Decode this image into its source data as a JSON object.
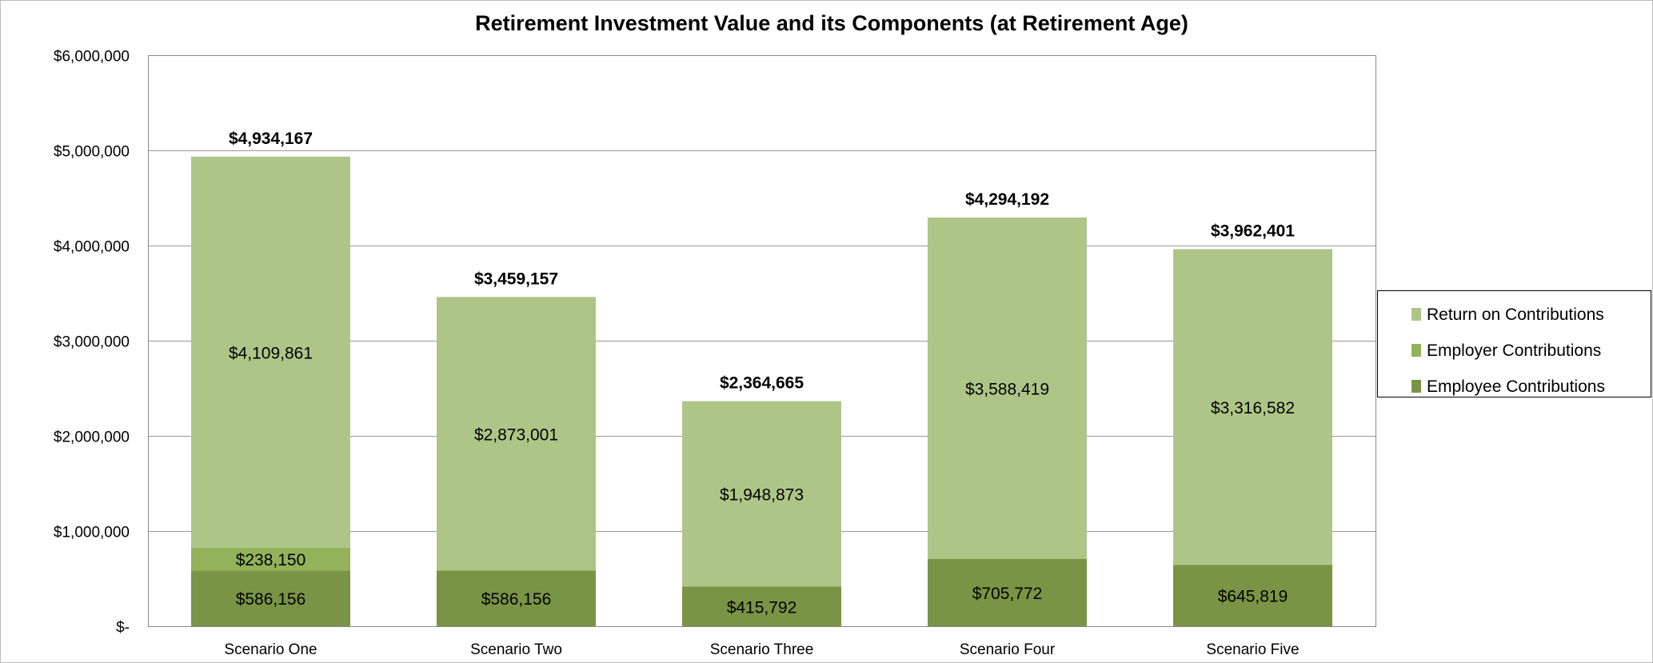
{
  "chart_data": {
    "type": "bar",
    "stacked": true,
    "title": "Retirement Investment Value and its Components (at Retirement Age)",
    "xlabel": "",
    "ylabel": "",
    "ylim": [
      0,
      6000000
    ],
    "yticks": [
      0,
      1000000,
      2000000,
      3000000,
      4000000,
      5000000,
      6000000
    ],
    "ytick_labels": [
      "$-",
      "$1,000,000",
      "$2,000,000",
      "$3,000,000",
      "$4,000,000",
      "$5,000,000",
      "$6,000,000"
    ],
    "grid": true,
    "legend_position": "right",
    "categories": [
      "Scenario One",
      "Scenario Two",
      "Scenario Three",
      "Scenario Four",
      "Scenario Five"
    ],
    "series": [
      {
        "name": "Employee Contributions",
        "color": "#7a9445",
        "values": [
          586156,
          586156,
          415792,
          705772,
          645819
        ],
        "labels": [
          "$586,156",
          "$586,156",
          "$415,792",
          "$705,772",
          "$645,819"
        ]
      },
      {
        "name": "Employer Contributions",
        "color": "#93b25a",
        "values": [
          238150,
          0,
          0,
          0,
          0
        ],
        "labels": [
          "$238,150",
          "$-",
          "$-",
          "$-",
          "$-"
        ]
      },
      {
        "name": "Return on Contributions",
        "color": "#adc687",
        "values": [
          4109861,
          2873001,
          1948873,
          3588419,
          3316582
        ],
        "labels": [
          "$4,109,861",
          "$2,873,001",
          "$1,948,873",
          "$3,588,419",
          "$3,316,582"
        ]
      }
    ],
    "totals": [
      4934167,
      3459157,
      2364665,
      4294192,
      3962401
    ],
    "total_labels": [
      "$4,934,167",
      "$3,459,157",
      "$2,364,665",
      "$4,294,192",
      "$3,962,401"
    ]
  }
}
